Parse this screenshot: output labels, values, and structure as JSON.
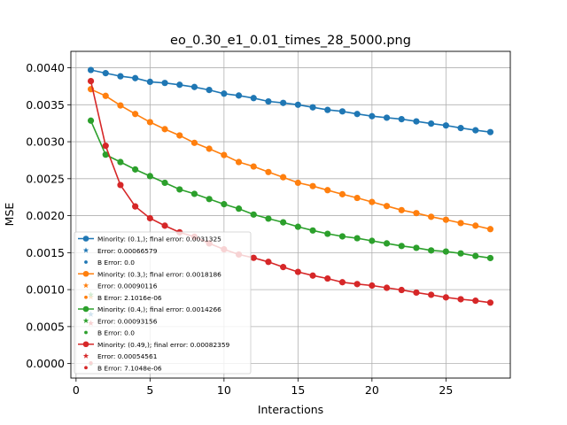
{
  "chart_data": {
    "type": "line",
    "title": "eo_0.30_e1_0.01_times_28_5000.png",
    "xlabel": "Interactions",
    "ylabel": "MSE",
    "xlim": [
      -0.35,
      29.35
    ],
    "ylim": [
      -0.000196,
      0.004222
    ],
    "xticks": [
      0,
      5,
      10,
      15,
      20,
      25
    ],
    "yticks": [
      0.0,
      0.0005,
      0.001,
      0.0015,
      0.002,
      0.0025,
      0.003,
      0.0035,
      0.004
    ],
    "ytick_labels": [
      "0.0000",
      "0.0005",
      "0.0010",
      "0.0015",
      "0.0020",
      "0.0025",
      "0.0030",
      "0.0035",
      "0.0040"
    ],
    "grid": true,
    "legend_position": "bottom-left",
    "x": [
      1,
      2,
      3,
      4,
      5,
      6,
      7,
      8,
      9,
      10,
      11,
      12,
      13,
      14,
      15,
      16,
      17,
      18,
      19,
      20,
      21,
      22,
      23,
      24,
      25,
      26,
      27,
      28
    ],
    "series": [
      {
        "name": "Minority: (0.1,); final error: 0.0031325",
        "color": "#1f77b4",
        "values": [
          0.00397,
          0.003927,
          0.003885,
          0.00386,
          0.00381,
          0.003795,
          0.00377,
          0.00374,
          0.0037,
          0.00365,
          0.003625,
          0.00359,
          0.003545,
          0.003525,
          0.0035,
          0.003465,
          0.00343,
          0.00341,
          0.003375,
          0.003345,
          0.003325,
          0.003305,
          0.003275,
          0.003245,
          0.00322,
          0.003185,
          0.003155,
          0.00313
        ],
        "error_label": "Error: 0.00066579",
        "error_value": 0.00066579,
        "b_error_label": "B Error: 0.0",
        "b_error_value": 0.0
      },
      {
        "name": "Minority: (0.3,); final error: 0.0018186",
        "color": "#ff7f0e",
        "values": [
          0.00371,
          0.00362,
          0.00349,
          0.003375,
          0.003265,
          0.00317,
          0.003085,
          0.002985,
          0.002905,
          0.00282,
          0.002725,
          0.002665,
          0.00259,
          0.00252,
          0.002445,
          0.0024,
          0.002345,
          0.00229,
          0.00224,
          0.002185,
          0.00213,
          0.002075,
          0.002035,
          0.001985,
          0.001945,
          0.0019,
          0.001865,
          0.001818
        ],
        "error_label": "Error: 0.00090116",
        "error_value": 0.00090116,
        "b_error_label": "B Error: 2.1016e-06",
        "b_error_value": 2.1016e-06
      },
      {
        "name": "Minority: (0.4,); final error: 0.0014266",
        "color": "#2ca02c",
        "values": [
          0.003285,
          0.002825,
          0.002725,
          0.002625,
          0.002535,
          0.002445,
          0.002355,
          0.002295,
          0.002225,
          0.002155,
          0.002095,
          0.002015,
          0.00196,
          0.00191,
          0.00185,
          0.0018,
          0.001755,
          0.00172,
          0.001695,
          0.00166,
          0.001625,
          0.00159,
          0.001565,
          0.00153,
          0.001515,
          0.00149,
          0.001455,
          0.001427
        ],
        "error_label": "Error: 0.00093156",
        "error_value": 0.00093156,
        "b_error_label": "B Error: 0.0",
        "b_error_value": 0.0
      },
      {
        "name": "Minority: (0.49,); final error: 0.00082359",
        "color": "#d62728",
        "values": [
          0.00382,
          0.002945,
          0.002415,
          0.002125,
          0.001965,
          0.001865,
          0.001775,
          0.001715,
          0.001625,
          0.001545,
          0.001475,
          0.00143,
          0.001375,
          0.001305,
          0.00124,
          0.00119,
          0.00115,
          0.0011,
          0.001075,
          0.001055,
          0.001025,
          0.000995,
          0.00096,
          0.00093,
          0.000895,
          0.00087,
          0.00085,
          0.000824
        ],
        "error_label": "Error: 0.00054561",
        "error_value": 0.00054561,
        "b_error_label": "B Error: 7.1048e-06",
        "b_error_value": 7.1048e-06
      }
    ]
  }
}
